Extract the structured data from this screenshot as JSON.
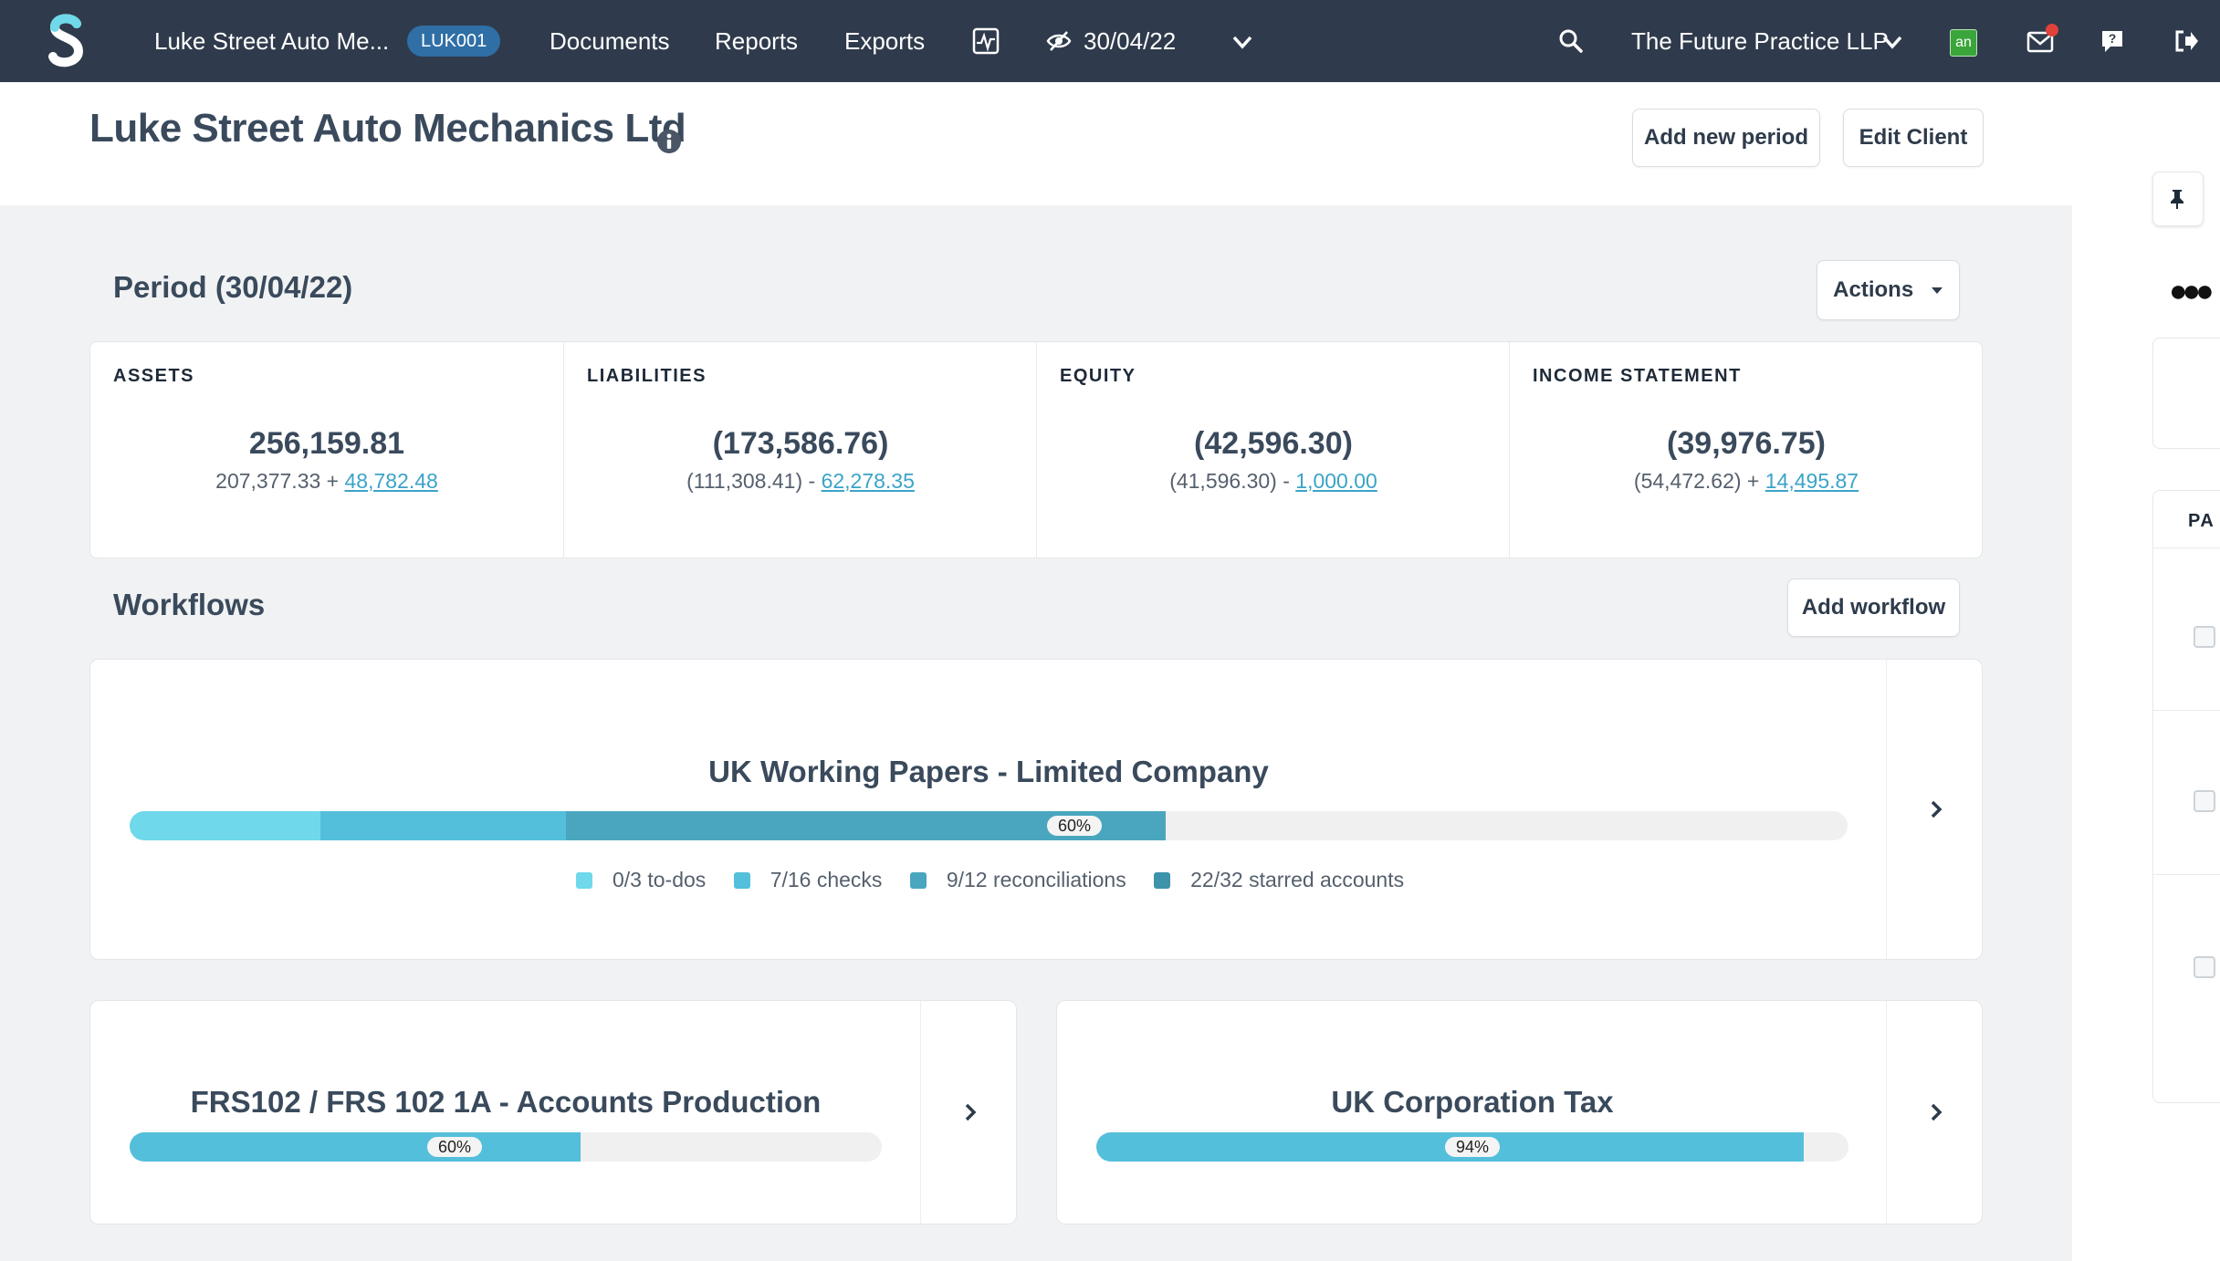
{
  "nav": {
    "client_name": "Luke Street Auto Me...",
    "client_code": "LUK001",
    "documents": "Documents",
    "reports": "Reports",
    "exports": "Exports",
    "period": "30/04/22",
    "practice": "The Future Practice LLP",
    "app_badge": "an",
    "icons": [
      "app-logo-icon",
      "activity-monitor-icon",
      "eye-slash-icon",
      "chevron-down-icon",
      "search-icon",
      "chevron-down-icon",
      "app-badge-icon",
      "mail-icon",
      "help-icon",
      "logout-icon"
    ],
    "accent_colors": {
      "bar": "#2f3b4c",
      "badge": "#2f6fa6",
      "app_badge": "#3aa53a",
      "notification": "#e0413a"
    }
  },
  "header": {
    "title": "Luke Street Auto Mechanics Ltd",
    "add_period": "Add new period",
    "edit_client": "Edit Client"
  },
  "period": {
    "title": "Period (30/04/22)",
    "actions": "Actions",
    "summary": [
      {
        "label": "ASSETS",
        "value": "256,159.81",
        "base": "207,377.33 +",
        "link": "48,782.48"
      },
      {
        "label": "LIABILITIES",
        "value": "(173,586.76)",
        "base": "(111,308.41) -",
        "link": "62,278.35"
      },
      {
        "label": "EQUITY",
        "value": "(42,596.30)",
        "base": "(41,596.30) -",
        "link": "1,000.00"
      },
      {
        "label": "INCOME STATEMENT",
        "value": "(39,976.75)",
        "base": "(54,472.62) +",
        "link": "14,495.87"
      }
    ]
  },
  "workflows": {
    "title": "Workflows",
    "add": "Add workflow",
    "items": [
      {
        "name": "UK Working Papers - Limited Company",
        "percent_label": "60%",
        "progress": 0.6,
        "segments": [
          0.111,
          0.143,
          0.349
        ],
        "legend": [
          "0/3 to-dos",
          "7/16 checks",
          "9/12 reconciliations",
          "22/32 starred accounts"
        ],
        "colors": [
          "#6fd8ea",
          "#53bfdb",
          "#4aa6bf",
          "#3d93aa"
        ]
      },
      {
        "name": "FRS102 / FRS 102 1A - Accounts Production",
        "percent_label": "60%",
        "progress": 0.6,
        "color": "#53bfdb"
      },
      {
        "name": "UK Corporation Tax",
        "percent_label": "94%",
        "progress": 0.94,
        "color": "#53bfdb"
      }
    ]
  },
  "rail": {
    "partial_label": "PA"
  }
}
